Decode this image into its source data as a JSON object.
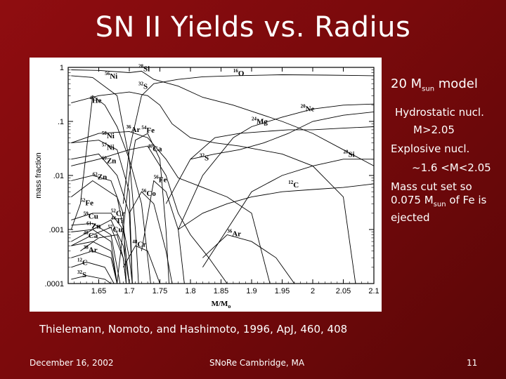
{
  "slide": {
    "title": "SN II Yields vs. Radius",
    "notes": {
      "model_prefix": "20 M",
      "model_sub": "sun",
      "model_suffix": " model",
      "hydrostatic": "Hydrostatic nucl.",
      "hydro_range": "M>2.05",
      "explosive": "Explosive nucl.",
      "explosive_range": "~1.6 <M<2.05",
      "cut_prefix": "Mass cut set so 0.075 M",
      "cut_sub": "sun",
      "cut_suffix": " of Fe is ejected"
    },
    "citation": "Thielemann, Nomoto, and Hashimoto, 1996, ApJ, 460, 408",
    "footer": {
      "date": "December 16, 2002",
      "conference": "SNoRe Cambridge, MA",
      "page": "11"
    },
    "colors": {
      "background": "#8f0d10",
      "text": "#ffffff",
      "plot_line": "#000000",
      "plot_bg": "#ffffff"
    }
  },
  "chart_data": {
    "type": "line",
    "title": "",
    "xlabel": "M/M",
    "xlabel_sub": "o",
    "ylabel": "mass fraction",
    "xlim": [
      1.6,
      2.1
    ],
    "ylim_log10": [
      -4,
      0
    ],
    "yscale": "log",
    "grid": false,
    "x_ticks": [
      {
        "v": 1.65,
        "label": "1.65"
      },
      {
        "v": 1.7,
        "label": "1.7"
      },
      {
        "v": 1.75,
        "label": "1.75"
      },
      {
        "v": 1.8,
        "label": "1.8"
      },
      {
        "v": 1.85,
        "label": "1.85"
      },
      {
        "v": 1.9,
        "label": "1.9"
      },
      {
        "v": 1.95,
        "label": "1.95"
      },
      {
        "v": 2.0,
        "label": "2"
      },
      {
        "v": 2.05,
        "label": "2.05"
      },
      {
        "v": 2.1,
        "label": "2.1"
      }
    ],
    "y_ticks": [
      {
        "v": 1,
        "label": "1"
      },
      {
        "v": 0.1,
        "label": ".1"
      },
      {
        "v": 0.01,
        "label": ".01"
      },
      {
        "v": 0.001,
        "label": ".001"
      },
      {
        "v": 0.0001,
        "label": ".0001"
      }
    ],
    "series": [
      {
        "name": "16O",
        "mass": "16",
        "sym": "O",
        "label_at": [
          1.87,
          0.7
        ],
        "points": [
          [
            1.69,
            0.003
          ],
          [
            1.7,
            0.03
          ],
          [
            1.72,
            0.3
          ],
          [
            1.74,
            0.5
          ],
          [
            1.78,
            0.6
          ],
          [
            1.82,
            0.67
          ],
          [
            1.87,
            0.7
          ],
          [
            1.95,
            0.73
          ],
          [
            2.02,
            0.72
          ],
          [
            2.1,
            0.7
          ]
        ]
      },
      {
        "name": "28Si",
        "mass": "28",
        "sym": "Si",
        "label_at": [
          1.715,
          0.85
        ],
        "points": [
          [
            1.605,
            0.9
          ],
          [
            1.65,
            0.88
          ],
          [
            1.7,
            0.8
          ],
          [
            1.72,
            0.85
          ],
          [
            1.74,
            0.6
          ],
          [
            1.78,
            0.45
          ],
          [
            1.82,
            0.28
          ],
          [
            1.87,
            0.2
          ],
          [
            1.95,
            0.1
          ],
          [
            2.0,
            0.06
          ],
          [
            2.05,
            0.03
          ],
          [
            2.1,
            0.015
          ]
        ]
      },
      {
        "name": "56Ni",
        "mass": "56",
        "sym": "Ni",
        "label_at": [
          1.66,
          0.62
        ],
        "points": [
          [
            1.605,
            0.7
          ],
          [
            1.64,
            0.65
          ],
          [
            1.68,
            0.3
          ],
          [
            1.7,
            0.02
          ],
          [
            1.71,
            0.001
          ],
          [
            1.715,
            0.0001
          ]
        ]
      },
      {
        "name": "32S",
        "mass": "32",
        "sym": "S",
        "label_at": [
          1.715,
          0.4
        ],
        "points": [
          [
            1.605,
            0.22
          ],
          [
            1.65,
            0.3
          ],
          [
            1.7,
            0.35
          ],
          [
            1.73,
            0.3
          ],
          [
            1.75,
            0.2
          ],
          [
            1.77,
            0.09
          ],
          [
            1.8,
            0.05
          ],
          [
            1.84,
            0.04
          ],
          [
            1.88,
            0.035
          ],
          [
            1.95,
            0.025
          ],
          [
            2.0,
            0.015
          ],
          [
            2.05,
            0.004
          ],
          [
            2.07,
            0.0001
          ]
        ]
      },
      {
        "name": "4He",
        "mass": "4",
        "sym": "He",
        "label_at": [
          1.635,
          0.22
        ],
        "points": [
          [
            1.605,
            0.001
          ],
          [
            1.62,
            0.003
          ],
          [
            1.64,
            0.3
          ],
          [
            1.66,
            0.2
          ],
          [
            1.68,
            0.08
          ],
          [
            1.7,
            0.02
          ],
          [
            1.72,
            0.003
          ],
          [
            1.735,
            0.0001
          ]
        ]
      },
      {
        "name": "20Ne",
        "mass": "20",
        "sym": "Ne",
        "label_at": [
          1.98,
          0.155
        ],
        "points": [
          [
            1.78,
            0.001
          ],
          [
            1.82,
            0.01
          ],
          [
            1.87,
            0.05
          ],
          [
            1.9,
            0.08
          ],
          [
            1.95,
            0.12
          ],
          [
            2.0,
            0.17
          ],
          [
            2.05,
            0.2
          ],
          [
            2.1,
            0.21
          ]
        ]
      },
      {
        "name": "24Mg",
        "mass": "24",
        "sym": "Mg",
        "label_at": [
          1.9,
          0.09
        ],
        "points": [
          [
            1.76,
            0.003
          ],
          [
            1.8,
            0.02
          ],
          [
            1.84,
            0.05
          ],
          [
            1.88,
            0.06
          ],
          [
            1.92,
            0.065
          ],
          [
            1.96,
            0.07
          ],
          [
            2.0,
            0.07
          ],
          [
            2.05,
            0.075
          ],
          [
            2.1,
            0.08
          ]
        ]
      },
      {
        "name": "54Fe",
        "mass": "54",
        "sym": "Fe",
        "label_at": [
          1.72,
          0.062
        ],
        "points": [
          [
            1.68,
            0.0001
          ],
          [
            1.69,
            0.001
          ],
          [
            1.7,
            0.01
          ],
          [
            1.71,
            0.045
          ],
          [
            1.73,
            0.06
          ],
          [
            1.75,
            0.02
          ],
          [
            1.76,
            0.001
          ],
          [
            1.765,
            0.0001
          ]
        ]
      },
      {
        "name": "36Ar",
        "mass": "36",
        "sym": "Ar",
        "label_at": [
          1.695,
          0.064
        ],
        "points": [
          [
            1.605,
            0.04
          ],
          [
            1.65,
            0.06
          ],
          [
            1.7,
            0.065
          ],
          [
            1.73,
            0.05
          ],
          [
            1.76,
            0.02
          ],
          [
            1.78,
            0.009
          ],
          [
            1.82,
            0.006
          ],
          [
            1.86,
            0.004
          ],
          [
            1.9,
            0.002
          ],
          [
            1.93,
            0.0001
          ]
        ]
      },
      {
        "name": "58Ni",
        "mass": "58",
        "sym": "Ni",
        "label_at": [
          1.655,
          0.049
        ],
        "points": [
          [
            1.605,
            0.04
          ],
          [
            1.65,
            0.045
          ],
          [
            1.68,
            0.03
          ],
          [
            1.7,
            0.005
          ],
          [
            1.705,
            0.0001
          ]
        ]
      },
      {
        "name": "40Ca",
        "mass": "40",
        "sym": "Ca",
        "label_at": [
          1.73,
          0.028
        ],
        "points": [
          [
            1.605,
            0.015
          ],
          [
            1.65,
            0.02
          ],
          [
            1.7,
            0.03
          ],
          [
            1.73,
            0.035
          ],
          [
            1.76,
            0.01
          ],
          [
            1.78,
            0.002
          ],
          [
            1.8,
            0.0008
          ],
          [
            1.83,
            0.0003
          ],
          [
            1.86,
            0.0001
          ]
        ]
      },
      {
        "name": "57Ni",
        "mass": "57",
        "sym": "Ni",
        "label_at": [
          1.655,
          0.03
        ],
        "points": [
          [
            1.605,
            0.02
          ],
          [
            1.65,
            0.025
          ],
          [
            1.68,
            0.01
          ],
          [
            1.7,
            0.002
          ],
          [
            1.705,
            0.0001
          ]
        ]
      },
      {
        "name": "32S (outer)",
        "mass": "32",
        "sym": "S",
        "label_at": [
          1.815,
          0.019
        ],
        "points": [
          [
            1.8,
            0.02
          ],
          [
            1.84,
            0.025
          ],
          [
            1.88,
            0.03
          ],
          [
            1.92,
            0.04
          ],
          [
            1.96,
            0.06
          ],
          [
            2.0,
            0.1
          ],
          [
            2.05,
            0.13
          ],
          [
            2.1,
            0.15
          ]
        ]
      },
      {
        "name": "28Si (outer)",
        "mass": "28",
        "sym": "Si",
        "label_at": [
          2.05,
          0.022
        ],
        "points": [
          [
            1.82,
            0.0002
          ],
          [
            1.86,
            0.001
          ],
          [
            1.9,
            0.005
          ],
          [
            1.95,
            0.01
          ],
          [
            2.0,
            0.015
          ],
          [
            2.05,
            0.02
          ],
          [
            2.1,
            0.02
          ]
        ]
      },
      {
        "name": "60Zn",
        "mass": "60",
        "sym": "Zn",
        "label_at": [
          1.655,
          0.017
        ],
        "points": [
          [
            1.605,
            0.008
          ],
          [
            1.64,
            0.01
          ],
          [
            1.67,
            0.008
          ],
          [
            1.69,
            0.002
          ],
          [
            1.695,
            0.0001
          ]
        ]
      },
      {
        "name": "62Zn",
        "mass": "62",
        "sym": "Zn",
        "label_at": [
          1.64,
          0.0085
        ],
        "points": [
          [
            1.605,
            0.004
          ],
          [
            1.64,
            0.008
          ],
          [
            1.68,
            0.004
          ],
          [
            1.7,
            0.0003
          ],
          [
            1.705,
            0.0001
          ]
        ]
      },
      {
        "name": "52Fe",
        "mass": "52",
        "sym": "Fe",
        "label_at": [
          1.62,
          0.0028
        ],
        "points": [
          [
            1.605,
            0.0015
          ],
          [
            1.64,
            0.002
          ],
          [
            1.67,
            0.002
          ],
          [
            1.69,
            0.001
          ],
          [
            1.7,
            0.0001
          ]
        ]
      },
      {
        "name": "56Fe",
        "mass": "56",
        "sym": "Fe",
        "label_at": [
          1.74,
          0.0075
        ],
        "points": [
          [
            1.72,
            0.0004
          ],
          [
            1.74,
            0.008
          ],
          [
            1.76,
            0.005
          ],
          [
            1.78,
            0.001
          ],
          [
            1.79,
            0.0001
          ]
        ]
      },
      {
        "name": "56Co",
        "mass": "56",
        "sym": "Co",
        "label_at": [
          1.72,
          0.0042
        ],
        "points": [
          [
            1.7,
            0.002
          ],
          [
            1.72,
            0.005
          ],
          [
            1.74,
            0.003
          ],
          [
            1.76,
            0.0004
          ],
          [
            1.77,
            0.0001
          ]
        ]
      },
      {
        "name": "12C",
        "mass": "12",
        "sym": "C",
        "label_at": [
          1.96,
          0.006
        ],
        "points": [
          [
            1.78,
            0.001
          ],
          [
            1.82,
            0.002
          ],
          [
            1.86,
            0.003
          ],
          [
            1.9,
            0.004
          ],
          [
            1.95,
            0.005
          ],
          [
            2.0,
            0.0055
          ],
          [
            2.05,
            0.006
          ],
          [
            2.1,
            0.007
          ]
        ]
      },
      {
        "name": "52Cr",
        "mass": "52",
        "sym": "Cr",
        "label_at": [
          1.67,
          0.0018
        ],
        "points": [
          [
            1.605,
            0.0006
          ],
          [
            1.64,
            0.001
          ],
          [
            1.67,
            0.0015
          ],
          [
            1.69,
            0.0005
          ],
          [
            1.7,
            0.0001
          ]
        ]
      },
      {
        "name": "44Ti",
        "mass": "44",
        "sym": "Ti",
        "label_at": [
          1.67,
          0.0013
        ],
        "points": [
          [
            1.605,
            0.0005
          ],
          [
            1.64,
            0.0008
          ],
          [
            1.67,
            0.0011
          ],
          [
            1.69,
            0.0003
          ],
          [
            1.695,
            0.0001
          ]
        ]
      },
      {
        "name": "59Cu",
        "mass": "59",
        "sym": "Cu",
        "label_at": [
          1.625,
          0.0016
        ],
        "points": [
          [
            1.605,
            0.0012
          ],
          [
            1.64,
            0.0013
          ],
          [
            1.67,
            0.0008
          ],
          [
            1.685,
            0.0001
          ]
        ]
      },
      {
        "name": "61Zn",
        "mass": "61",
        "sym": "Zn",
        "label_at": [
          1.63,
          0.00105
        ],
        "points": [
          [
            1.605,
            0.0009
          ],
          [
            1.64,
            0.001
          ],
          [
            1.67,
            0.0006
          ],
          [
            1.68,
            0.0001
          ]
        ]
      },
      {
        "name": "57Cu",
        "mass": "57",
        "sym": "Cu",
        "label_at": [
          1.665,
          0.0009
        ],
        "points": [
          [
            1.62,
            0.0004
          ],
          [
            1.65,
            0.0007
          ],
          [
            1.68,
            0.0008
          ],
          [
            1.69,
            0.0003
          ],
          [
            1.695,
            0.0001
          ]
        ]
      },
      {
        "name": "40Ca (outer)",
        "mass": "40",
        "sym": "Ca",
        "label_at": [
          1.625,
          0.0007
        ],
        "points": [
          [
            1.605,
            0.0005
          ],
          [
            1.64,
            0.0006
          ],
          [
            1.67,
            0.0004
          ],
          [
            1.68,
            0.0001
          ]
        ]
      },
      {
        "name": "48Cr",
        "mass": "48",
        "sym": "Cr",
        "label_at": [
          1.705,
          0.00048
        ],
        "points": [
          [
            1.69,
            0.0002
          ],
          [
            1.71,
            0.0005
          ],
          [
            1.73,
            0.0004
          ],
          [
            1.75,
            0.0001
          ]
        ]
      },
      {
        "name": "38Ar",
        "mass": "38",
        "sym": "Ar",
        "label_at": [
          1.625,
          0.00038
        ],
        "points": [
          [
            1.605,
            0.0003
          ],
          [
            1.64,
            0.0004
          ],
          [
            1.67,
            0.0003
          ],
          [
            1.68,
            0.0001
          ]
        ]
      },
      {
        "name": "36Ar (outer)",
        "mass": "36",
        "sym": "Ar",
        "label_at": [
          1.86,
          0.00075
        ],
        "points": [
          [
            1.82,
            0.0003
          ],
          [
            1.86,
            0.0008
          ],
          [
            1.9,
            0.0006
          ],
          [
            1.94,
            0.0003
          ],
          [
            1.97,
            0.0001
          ]
        ]
      },
      {
        "name": "12C (inner)",
        "mass": "12",
        "sym": "C",
        "label_at": [
          1.615,
          0.00022
        ],
        "points": [
          [
            1.605,
            0.0002
          ],
          [
            1.63,
            0.00025
          ],
          [
            1.66,
            0.0002
          ],
          [
            1.675,
            0.0001
          ]
        ]
      },
      {
        "name": "32S (inner)",
        "mass": "32",
        "sym": "S",
        "label_at": [
          1.615,
          0.00013
        ],
        "points": [
          [
            1.605,
            0.00012
          ],
          [
            1.63,
            0.00014
          ],
          [
            1.66,
            0.00012
          ],
          [
            1.67,
            0.0001
          ]
        ]
      }
    ]
  }
}
